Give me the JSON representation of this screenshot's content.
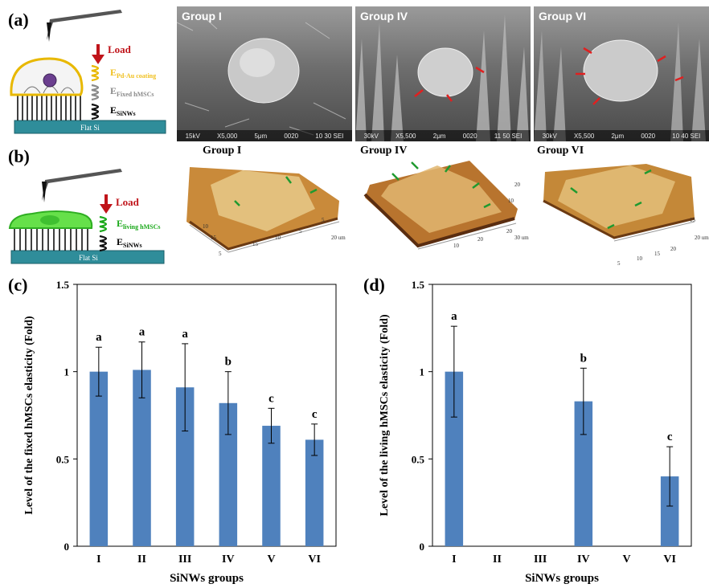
{
  "panels": {
    "a": {
      "letter": "(a)",
      "schematic": {
        "load": "Load",
        "labels": [
          {
            "base": "E",
            "sub": "Pd-Au coating",
            "color": "#f0c020"
          },
          {
            "base": "E",
            "sub": "Fixed hMSCs",
            "color": "#8a8a8a"
          },
          {
            "base": "E",
            "sub": "SiNWs",
            "color": "#000000"
          }
        ],
        "substrate": "Flat Si"
      },
      "sem_images": [
        {
          "title": "Group I",
          "info": [
            "15kV",
            "X5,000",
            "5μm",
            "0020",
            "10 30 SEI"
          ]
        },
        {
          "title": "Group IV",
          "info": [
            "30kV",
            "X5,500",
            "2μm",
            "0020",
            "11 50 SEI"
          ]
        },
        {
          "title": "Group VI",
          "info": [
            "30kV",
            "X5,500",
            "2μm",
            "0020",
            "10 40 SEI"
          ]
        }
      ]
    },
    "b": {
      "letter": "(b)",
      "schematic": {
        "load": "Load",
        "labels": [
          {
            "base": "E",
            "sub": "living hMSCs",
            "color": "#1aa81a"
          },
          {
            "base": "E",
            "sub": "SiNWs",
            "color": "#000000"
          }
        ],
        "substrate": "Flat Si"
      },
      "afm_images": [
        {
          "title": "Group I",
          "ticks_a": [
            "5",
            "10",
            "15",
            "20 um"
          ],
          "ticks_b": [
            "5",
            "10",
            "15"
          ],
          "ticks_c": [
            "5",
            "10",
            "15",
            "20"
          ]
        },
        {
          "title": "Group IV",
          "ticks_a": [
            "10",
            "20",
            "30 um"
          ],
          "ticks_b": [
            "10",
            "20"
          ],
          "ticks_c": [
            "10",
            "20",
            "30"
          ]
        },
        {
          "title": "Group VI",
          "ticks_a": [
            "5",
            "10",
            "15",
            "20 um"
          ],
          "ticks_b": [
            "5",
            "10",
            "15"
          ],
          "ticks_c": [
            "5",
            "10",
            "15",
            "20"
          ]
        }
      ]
    },
    "c": {
      "letter": "(c)"
    },
    "d": {
      "letter": "(d)"
    }
  },
  "colors": {
    "bar": "#4f81bd",
    "load_arrow": "#c0141a",
    "cell_arrow_sem": "#e02020",
    "cell_arrow_afm": "#1f9a2f",
    "substrate": "#2f8d9a"
  },
  "chart_data": [
    {
      "type": "bar",
      "panel": "c",
      "categories": [
        "I",
        "II",
        "III",
        "IV",
        "V",
        "VI"
      ],
      "values": [
        1.0,
        1.01,
        0.91,
        0.82,
        0.69,
        0.61
      ],
      "errors": [
        0.14,
        0.16,
        0.25,
        0.18,
        0.1,
        0.09
      ],
      "significance": [
        "a",
        "a",
        "a",
        "b",
        "c",
        "c"
      ],
      "xlabel": "SiNWs groups",
      "ylabel": "Level of the fixed hMSCs elasticity  (Fold)",
      "ylim": [
        0,
        1.5
      ],
      "yticks": [
        "0",
        "0.5",
        "1",
        "1.5"
      ],
      "grid": false
    },
    {
      "type": "bar",
      "panel": "d",
      "categories": [
        "I",
        "II",
        "III",
        "IV",
        "V",
        "VI"
      ],
      "values": [
        1.0,
        null,
        null,
        0.83,
        null,
        0.4
      ],
      "errors": [
        0.26,
        null,
        null,
        0.19,
        null,
        0.17
      ],
      "significance": [
        "a",
        "",
        "",
        "b",
        "",
        "c"
      ],
      "xlabel": "SiNWs groups",
      "ylabel": "Level of the living hMSCs elasticity  (Fold)",
      "ylim": [
        0,
        1.5
      ],
      "yticks": [
        "0",
        "0.5",
        "1",
        "1.5"
      ],
      "grid": false
    }
  ]
}
